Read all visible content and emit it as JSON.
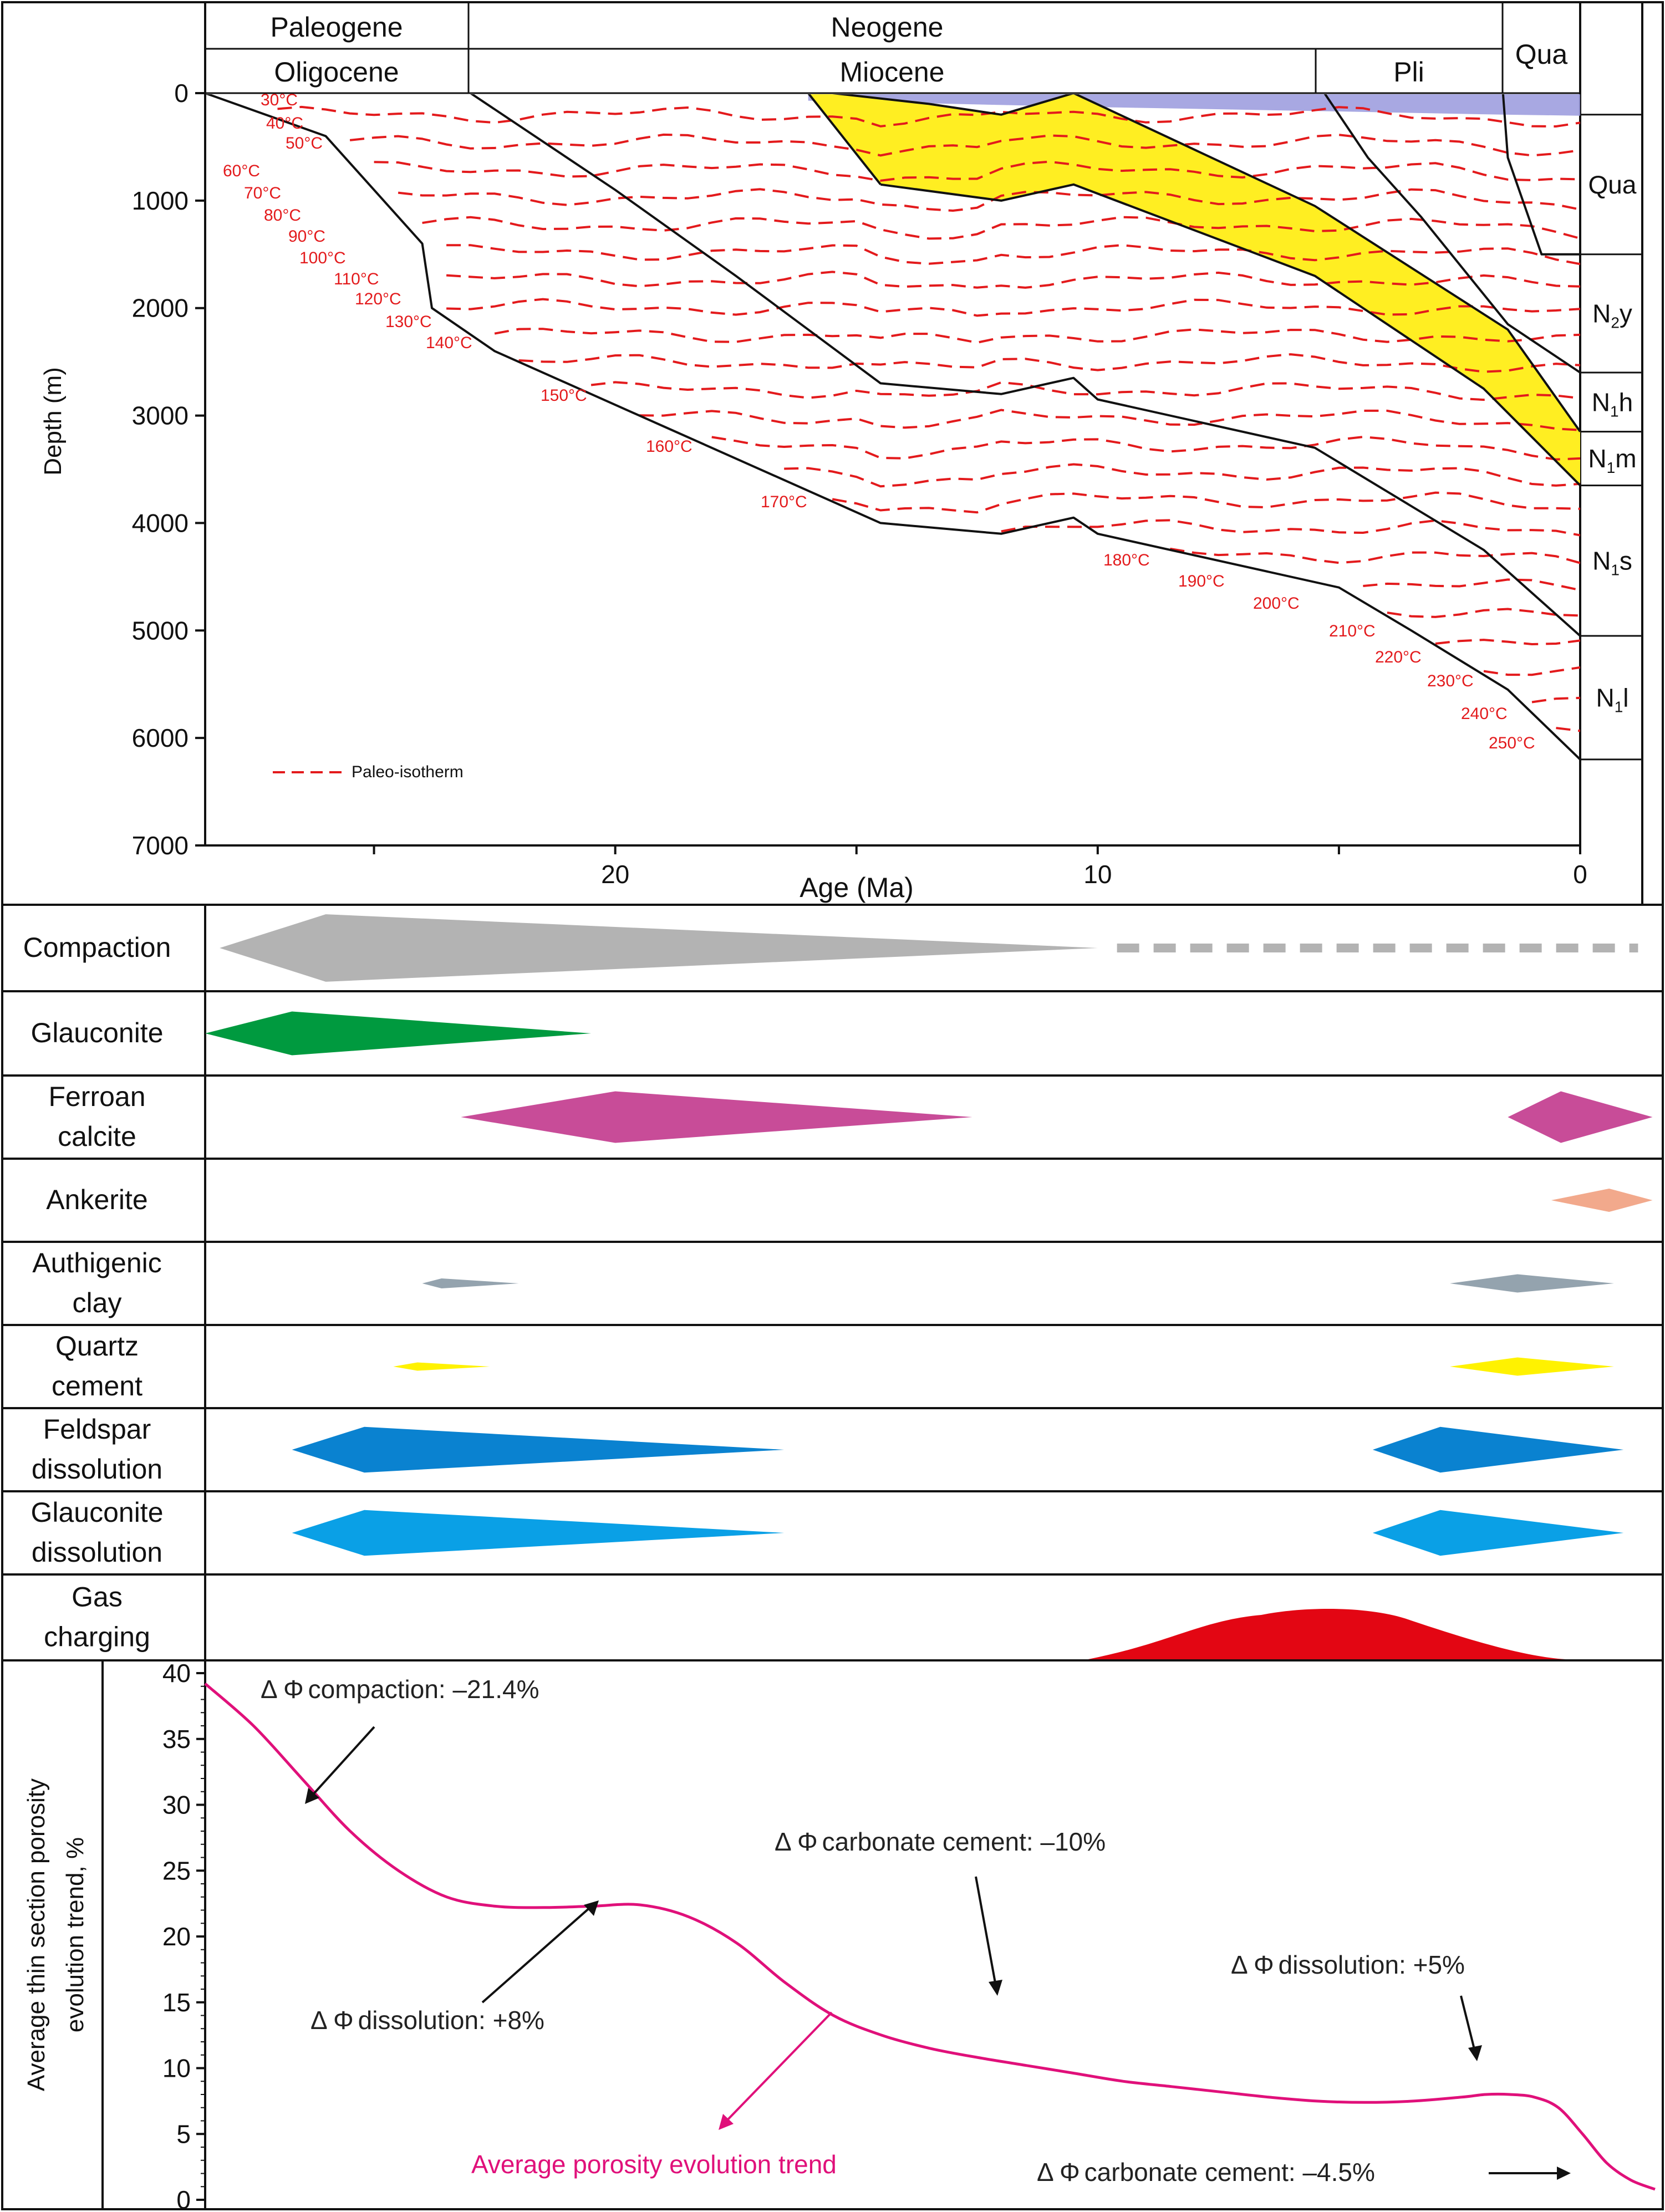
{
  "chart_data": [
    {
      "type": "burial_history",
      "title": "",
      "xlabel": "Age (Ma)",
      "ylabel": "Depth (m)",
      "xlim": [
        28.5,
        0
      ],
      "ylim": [
        7000,
        0
      ],
      "x_ticks": [
        20,
        10,
        0
      ],
      "y_ticks": [
        0,
        1000,
        2000,
        3000,
        4000,
        5000,
        6000,
        7000
      ],
      "periods": [
        {
          "label": "Paleogene",
          "from": 28.5,
          "to": 23.0
        },
        {
          "label": "Neogene",
          "from": 23.0,
          "to": 1.6
        },
        {
          "label": "Qua",
          "from": 1.6,
          "to": 0
        }
      ],
      "epochs": [
        {
          "label": "Oligocene",
          "from": 28.5,
          "to": 23.0
        },
        {
          "label": "Miocene",
          "from": 23.0,
          "to": 5.3
        },
        {
          "label": "Pli",
          "from": 5.3,
          "to": 1.6
        }
      ],
      "formations": [
        {
          "label": "Qua",
          "top": 200,
          "bottom": 1500
        },
        {
          "label": "N2y",
          "base": "N",
          "sub": "2",
          "suffix": "y",
          "top": 1500,
          "bottom": 2600
        },
        {
          "label": "N1h",
          "base": "N",
          "sub": "1",
          "suffix": "h",
          "top": 2600,
          "bottom": 3150
        },
        {
          "label": "N1m",
          "base": "N",
          "sub": "1",
          "suffix": "m",
          "top": 3150,
          "bottom": 3650
        },
        {
          "label": "N1s",
          "base": "N",
          "sub": "1",
          "suffix": "s",
          "top": 3650,
          "bottom": 5050
        },
        {
          "label": "N1l",
          "base": "N",
          "sub": "1",
          "suffix": "l",
          "top": 5050,
          "bottom": 6200
        }
      ],
      "burial_curves": [
        {
          "name": "N1l-base",
          "points": [
            [
              28.5,
              0
            ],
            [
              26,
              400
            ],
            [
              24,
              1400
            ],
            [
              23.8,
              2000
            ],
            [
              22.5,
              2400
            ],
            [
              19,
              3100
            ],
            [
              14.5,
              4000
            ],
            [
              12,
              4100
            ],
            [
              10.5,
              3950
            ],
            [
              10,
              4100
            ],
            [
              5,
              4600
            ],
            [
              3.5,
              5000
            ],
            [
              1.5,
              5550
            ],
            [
              0,
              6200
            ]
          ]
        },
        {
          "name": "N1s-base",
          "points": [
            [
              23,
              0
            ],
            [
              20,
              900
            ],
            [
              17.5,
              1700
            ],
            [
              14.5,
              2700
            ],
            [
              12,
              2800
            ],
            [
              10.5,
              2650
            ],
            [
              10,
              2850
            ],
            [
              5.5,
              3300
            ],
            [
              2,
              4250
            ],
            [
              0,
              5050
            ]
          ]
        },
        {
          "name": "N1m-base",
          "points": [
            [
              14.5,
              850
            ],
            [
              12,
              1000
            ],
            [
              10.5,
              850
            ],
            [
              5.5,
              1700
            ],
            [
              2,
              2750
            ],
            [
              0,
              3650
            ]
          ]
        },
        {
          "name": "N1h-base",
          "points": [
            [
              16,
              0
            ],
            [
              14.5,
              850
            ]
          ]
        },
        {
          "name": "N1h-top",
          "points": [
            [
              15.5,
              0
            ],
            [
              13.5,
              100
            ],
            [
              12,
              200
            ],
            [
              10.5,
              0
            ],
            [
              5.5,
              1050
            ],
            [
              1.5,
              2200
            ],
            [
              0,
              3150
            ]
          ]
        },
        {
          "name": "N2y-base",
          "points": [
            [
              5.3,
              0
            ],
            [
              4.4,
              600
            ],
            [
              3.3,
              1150
            ],
            [
              1.5,
              2150
            ],
            [
              0,
              2600
            ]
          ]
        },
        {
          "name": "Qua-base",
          "points": [
            [
              1.6,
              0
            ],
            [
              1.5,
              600
            ],
            [
              0.8,
              1500
            ],
            [
              0,
              1500
            ]
          ]
        }
      ],
      "reservoir_interval": {
        "name": "N1h",
        "color": "#ffee22"
      },
      "seawater": {
        "color": "#9999dd"
      },
      "isotherm_labels": [
        "30°C",
        "40°C",
        "50°C",
        "60°C",
        "70°C",
        "80°C",
        "90°C",
        "100°C",
        "110°C",
        "120°C",
        "130°C",
        "140°C",
        "150°C",
        "160°C",
        "170°C",
        "180°C",
        "190°C",
        "200°C",
        "210°C",
        "220°C",
        "230°C",
        "240°C",
        "250°C"
      ],
      "isotherm_color": "#e31a1c",
      "legend": [
        {
          "label": "Paleo-isotherm",
          "style": "dashed",
          "color": "#e31a1c"
        }
      ]
    },
    {
      "type": "event_timeline",
      "xlim": [
        28.5,
        0
      ],
      "events": [
        {
          "label_lines": [
            "Compaction"
          ],
          "color": "#b3b3b3",
          "spans": [
            {
              "start": 28.2,
              "peak": 26.0,
              "end": 10.0,
              "half_thickness": 0.78
            }
          ],
          "continuation": {
            "from": 9.6,
            "to": -1.2,
            "style": "dashed"
          }
        },
        {
          "label_lines": [
            "Glauconite"
          ],
          "color": "#009a3f",
          "spans": [
            {
              "start": 28.5,
              "peak": 26.7,
              "end": 20.5,
              "half_thickness": 0.52
            }
          ]
        },
        {
          "label_lines": [
            "Ferroan",
            "calcite"
          ],
          "color": "#c84c98",
          "spans": [
            {
              "start": 23.2,
              "peak": 20.0,
              "end": 12.6,
              "half_thickness": 0.62
            },
            {
              "start": 1.5,
              "peak": 0.4,
              "end": -1.5,
              "half_thickness": 0.62
            }
          ]
        },
        {
          "label_lines": [
            "Ankerite"
          ],
          "color": "#f2a98c",
          "spans": [
            {
              "start": 0.6,
              "peak": -0.6,
              "end": -1.5,
              "half_thickness": 0.28
            }
          ]
        },
        {
          "label_lines": [
            "Authigenic",
            "clay"
          ],
          "color": "#94a3ae",
          "spans": [
            {
              "start": 24.0,
              "peak": 23.6,
              "end": 22.0,
              "half_thickness": 0.12
            },
            {
              "start": 2.7,
              "peak": 1.3,
              "end": -0.7,
              "half_thickness": 0.22
            }
          ]
        },
        {
          "label_lines": [
            "Quartz",
            "cement"
          ],
          "color": "#fff200",
          "spans": [
            {
              "start": 24.6,
              "peak": 24.1,
              "end": 22.6,
              "half_thickness": 0.1
            },
            {
              "start": 2.7,
              "peak": 1.3,
              "end": -0.7,
              "half_thickness": 0.22
            }
          ]
        },
        {
          "label_lines": [
            "Feldspar",
            "dissolution"
          ],
          "color": "#0a82d0",
          "spans": [
            {
              "start": 26.7,
              "peak": 25.2,
              "end": 16.5,
              "half_thickness": 0.55
            },
            {
              "start": 4.3,
              "peak": 2.9,
              "end": -0.9,
              "half_thickness": 0.55
            }
          ]
        },
        {
          "label_lines": [
            "Glauconite",
            "dissolution"
          ],
          "color": "#0aa0e6",
          "spans": [
            {
              "start": 26.7,
              "peak": 25.2,
              "end": 16.5,
              "half_thickness": 0.55
            },
            {
              "start": 4.3,
              "peak": 2.9,
              "end": -0.9,
              "half_thickness": 0.55
            }
          ]
        },
        {
          "label_lines": [
            "Gas",
            "charging"
          ],
          "color": "#e30613",
          "spans": [
            {
              "start": 10.2,
              "peak": 5.0,
              "end": 0.3,
              "shape": "hump"
            }
          ]
        }
      ]
    },
    {
      "type": "line",
      "ylabel_lines": [
        "Average thin section porosity",
        "evolution trend, %"
      ],
      "ylim": [
        0,
        40
      ],
      "y_ticks": [
        0,
        5,
        10,
        15,
        20,
        25,
        30,
        35,
        40
      ],
      "xlim": [
        28.5,
        -1.5
      ],
      "series": [
        {
          "name": "Average porosity evolution trend",
          "color": "#e0107a",
          "x": [
            28.5,
            27.5,
            26.5,
            25.5,
            24.5,
            23.5,
            22.5,
            21.5,
            20.5,
            19.5,
            18.5,
            17.5,
            16.5,
            15.5,
            14.5,
            13.5,
            12.5,
            11.5,
            10.5,
            9.5,
            8.5,
            7.5,
            6.5,
            5.5,
            4.5,
            3.5,
            2.5,
            2.0,
            1.5,
            1.0,
            0.5,
            0.0,
            -0.5,
            -1.0,
            -1.5
          ],
          "y": [
            39.2,
            36.0,
            32.0,
            28.0,
            25.0,
            23.0,
            22.3,
            22.2,
            22.3,
            22.4,
            21.5,
            19.5,
            16.5,
            14.0,
            12.5,
            11.5,
            10.8,
            10.2,
            9.6,
            9.0,
            8.6,
            8.2,
            7.8,
            7.5,
            7.4,
            7.5,
            7.8,
            8.0,
            8.0,
            7.8,
            7.0,
            5.0,
            2.8,
            1.5,
            0.8
          ]
        }
      ],
      "annotations": [
        {
          "symbol": "Δ Φ",
          "text": "compaction: –21.4%",
          "color": "#222222"
        },
        {
          "symbol": "Δ Φ",
          "text": "dissolution: +8%",
          "color": "#222222"
        },
        {
          "symbol": "Δ Φ",
          "text": "carbonate cement: –10%",
          "color": "#222222"
        },
        {
          "symbol": "Δ Φ",
          "text": "dissolution: +5%",
          "color": "#222222"
        },
        {
          "symbol": "Δ Φ",
          "text": "carbonate cement: –4.5%",
          "color": "#222222"
        },
        {
          "symbol": "",
          "text": "Average porosity evolution trend",
          "color": "#e0107a"
        }
      ]
    }
  ]
}
